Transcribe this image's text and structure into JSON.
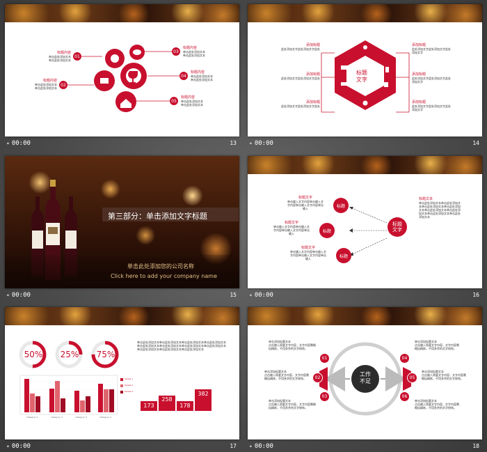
{
  "colors": {
    "accent": "#c8102e",
    "dark": "#2b2b2b"
  },
  "slides": [
    {
      "number": "13",
      "time": "00:00",
      "labels": {
        "title": "标题内容",
        "desc1": "单击此处添加文本",
        "desc2": "单击此处添加文本"
      },
      "nodes": [
        "01",
        "02",
        "03",
        "04",
        "05"
      ]
    },
    {
      "number": "14",
      "time": "00:00",
      "center_line1": "标题",
      "center_line2": "文字",
      "item_title": "添加标题",
      "item_desc1": "此处添加文字此处添加文字此处",
      "item_desc2": "添加文字"
    },
    {
      "number": "15",
      "time": "00:00",
      "title": "第三部分：单击添加文字标题",
      "company_cn": "单击此处添加您的公司名称",
      "company_en": "Click here to add your company name"
    },
    {
      "number": "16",
      "time": "00:00",
      "center_line1": "标题",
      "center_line2": "文字",
      "node_label": "标题",
      "left_title": "标题文字",
      "left_desc1": "单击输入文字内容单击输入文",
      "left_desc2": "字内容单击输入文字内容单击",
      "left_desc3": "输入",
      "right_title": "标题文本",
      "right_desc": "单击此处添加文本单击此处添加文本单击此处添加文本单击此处添加文本单击此处添加文本单击此处添加文本单击此处添加文本单击此处添加文本"
    },
    {
      "number": "17",
      "time": "00:00",
      "gauges": [
        "50%",
        "25%",
        "75%"
      ],
      "text_block": "单击此处添加文本单击此处添加文本单击此处添加文本单击此处添加文本单击此处添加文本单击此处添加文本单击此处添加文本单击此处添加文本单击此处添加文本单击此处添加文本单击此处添加文本",
      "legend": [
        "Series 1",
        "Series 2",
        "Series 3"
      ],
      "categories": [
        "Category 1",
        "Category 2",
        "Category 3",
        "Category 4"
      ],
      "bar_values": [
        "173",
        "258",
        "178",
        "382"
      ]
    },
    {
      "number": "18",
      "time": "00:00",
      "center_line1": "工作",
      "center_line2": "不足",
      "item_title": "单击添加标题文本",
      "item_desc": "点击输入简要文字内容，文字内容需概括精炼，不用多余的文字修饰。",
      "nodes": [
        "01",
        "02",
        "03",
        "04",
        "05",
        "06"
      ]
    }
  ]
}
